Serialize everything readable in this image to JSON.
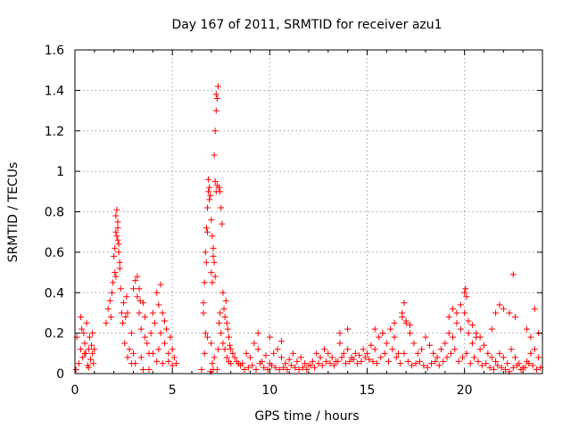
{
  "chart_data": {
    "type": "scatter",
    "title": "Day 167 of 2011, SRMTID for receiver azu1",
    "xlabel": "GPS time / hours",
    "ylabel": "SRMTID / TECUs",
    "xlim": [
      0,
      24
    ],
    "ylim": [
      0,
      1.6
    ],
    "xticks": [
      0,
      5,
      10,
      15,
      20
    ],
    "xtick_labels": [
      "0",
      "5",
      "10",
      "15",
      "20"
    ],
    "yticks": [
      0,
      0.2,
      0.4,
      0.6,
      0.8,
      1,
      1.2,
      1.4,
      1.6
    ],
    "ytick_labels": [
      "0",
      "0.2",
      "0.4",
      "0.6",
      "0.8",
      "1",
      "1.2",
      "1.4",
      "1.6"
    ],
    "grid": true,
    "marker": "plus",
    "color": "#ff0000",
    "series": [
      {
        "name": "SRMTID",
        "x": [
          0.05,
          0.1,
          0.2,
          0.3,
          0.35,
          0.4,
          0.45,
          0.5,
          0.55,
          0.6,
          0.65,
          0.7,
          0.75,
          0.8,
          0.85,
          0.9,
          0.95,
          1.0,
          0.3,
          0.5,
          0.7,
          0.9,
          1.6,
          1.7,
          1.8,
          1.85,
          1.9,
          1.95,
          2.0,
          2.05,
          2.1,
          2.15,
          2.2,
          2.25,
          2.3,
          2.35,
          2.4,
          2.45,
          2.5,
          2.55,
          2.6,
          2.65,
          2.7,
          2.8,
          2.9,
          3.0,
          3.1,
          3.2,
          3.3,
          3.4,
          3.5,
          3.6,
          3.7,
          3.8,
          3.9,
          4.0,
          4.1,
          4.2,
          4.3,
          4.4,
          4.5,
          4.6,
          4.7,
          4.8,
          4.9,
          5.0,
          5.1,
          5.2,
          2.1,
          2.15,
          2.2,
          2.2,
          2.25,
          2.3,
          2.1,
          2.05,
          3.0,
          3.1,
          3.2,
          3.3,
          3.35,
          3.4,
          3.5,
          4.2,
          4.3,
          4.4,
          4.5,
          4.6,
          2.7,
          2.9,
          3.6,
          3.8,
          4.0,
          4.8,
          5.0,
          6.5,
          6.6,
          6.65,
          6.7,
          6.75,
          6.8,
          6.85,
          6.9,
          6.95,
          7.0,
          7.05,
          7.1,
          7.15,
          7.2,
          7.25,
          7.3,
          7.35,
          7.4,
          7.45,
          7.5,
          7.55,
          7.6,
          7.65,
          7.7,
          7.75,
          7.8,
          7.85,
          7.9,
          7.95,
          8.0,
          8.1,
          8.2,
          8.3,
          8.4,
          8.5,
          6.7,
          6.75,
          6.8,
          6.85,
          6.9,
          7.0,
          7.05,
          7.1,
          7.15,
          7.2,
          7.2,
          7.25,
          7.25,
          7.3,
          7.1,
          7.15,
          6.95,
          7.0,
          7.05,
          7.3,
          7.35,
          7.4,
          7.45,
          6.6,
          6.65,
          6.8,
          7.5,
          7.6,
          7.7,
          7.8,
          7.9,
          8.0,
          8.6,
          8.8,
          9.0,
          9.2,
          9.4,
          9.6,
          9.8,
          10.0,
          10.2,
          10.4,
          10.6,
          10.8,
          11.0,
          11.2,
          11.4,
          11.6,
          11.8,
          12.0,
          12.2,
          12.4,
          12.6,
          12.8,
          13.0,
          13.2,
          13.4,
          13.6,
          13.8,
          14.0,
          14.2,
          14.4,
          14.6,
          14.8,
          15.0,
          15.2,
          15.4,
          15.6,
          15.8,
          16.0,
          16.2,
          16.4,
          16.6,
          16.8,
          17.0,
          17.2,
          17.4,
          17.6,
          17.8,
          18.0,
          18.2,
          18.4,
          18.6,
          18.8,
          19.0,
          19.2,
          19.4,
          19.6,
          19.8,
          20.0,
          20.2,
          20.4,
          20.6,
          20.8,
          21.0,
          21.2,
          21.4,
          21.6,
          21.8,
          22.0,
          22.2,
          22.4,
          22.6,
          22.8,
          23.0,
          23.2,
          23.4,
          23.6,
          23.8,
          8.7,
          8.9,
          9.1,
          9.3,
          9.5,
          9.7,
          9.9,
          10.1,
          10.3,
          10.5,
          10.7,
          10.9,
          11.1,
          11.3,
          11.5,
          11.7,
          11.9,
          12.1,
          12.3,
          12.5,
          12.7,
          12.9,
          13.1,
          13.3,
          13.5,
          13.7,
          13.9,
          14.1,
          14.3,
          14.5,
          14.7,
          14.9,
          15.1,
          15.3,
          15.5,
          15.7,
          15.9,
          16.1,
          16.3,
          16.5,
          16.7,
          16.9,
          17.1,
          17.3,
          17.5,
          17.7,
          17.9,
          18.1,
          18.3,
          18.5,
          18.7,
          18.9,
          19.1,
          19.3,
          19.5,
          19.7,
          19.9,
          20.1,
          20.3,
          20.5,
          20.7,
          20.9,
          21.1,
          21.3,
          21.5,
          21.7,
          21.9,
          22.1,
          22.3,
          22.5,
          22.7,
          22.9,
          23.1,
          23.3,
          23.5,
          23.7,
          23.9,
          9.4,
          10.0,
          10.6,
          13.6,
          14.0,
          15.4,
          15.8,
          16.4,
          16.8,
          16.9,
          17.0,
          17.2,
          19.2,
          19.4,
          19.6,
          19.8,
          20.0,
          20.05,
          20.1,
          20.2,
          20.4,
          20.6,
          20.8,
          21.4,
          21.6,
          21.8,
          22.0,
          22.3,
          22.5,
          22.6,
          23.2,
          23.4,
          23.6,
          23.8
        ],
        "y": [
          0.02,
          0.18,
          0.05,
          0.12,
          0.22,
          0.08,
          0.2,
          0.15,
          0.1,
          0.25,
          0.04,
          0.12,
          0.18,
          0.07,
          0.14,
          0.1,
          0.05,
          0.12,
          0.28,
          0.1,
          0.03,
          0.2,
          0.25,
          0.32,
          0.36,
          0.28,
          0.4,
          0.45,
          0.58,
          0.62,
          0.7,
          0.68,
          0.75,
          0.6,
          0.55,
          0.42,
          0.3,
          0.25,
          0.35,
          0.15,
          0.28,
          0.38,
          0.3,
          0.12,
          0.2,
          0.42,
          0.46,
          0.38,
          0.3,
          0.22,
          0.35,
          0.28,
          0.15,
          0.1,
          0.2,
          0.3,
          0.25,
          0.4,
          0.34,
          0.2,
          0.3,
          0.15,
          0.22,
          0.1,
          0.18,
          0.12,
          0.08,
          0.05,
          0.78,
          0.81,
          0.72,
          0.66,
          0.64,
          0.52,
          0.48,
          0.5,
          0.1,
          0.05,
          0.48,
          0.42,
          0.36,
          0.08,
          0.02,
          0.06,
          0.12,
          0.44,
          0.05,
          0.26,
          0.08,
          0.05,
          0.18,
          0.02,
          0.1,
          0.06,
          0.04,
          0.02,
          0.3,
          0.45,
          0.6,
          0.72,
          0.82,
          0.96,
          0.92,
          0.88,
          0.76,
          0.68,
          0.58,
          1.08,
          1.2,
          1.3,
          1.36,
          1.42,
          0.92,
          0.9,
          0.82,
          0.74,
          0.4,
          0.32,
          0.28,
          0.36,
          0.25,
          0.22,
          0.18,
          0.14,
          0.12,
          0.1,
          0.08,
          0.06,
          0.05,
          0.04,
          0.2,
          0.55,
          0.7,
          0.9,
          0.86,
          0.5,
          0.45,
          0.62,
          0.55,
          0.48,
          0.95,
          1.38,
          0.9,
          0.93,
          0.02,
          0.08,
          0.01,
          0.15,
          0.05,
          0.02,
          0.12,
          0.25,
          0.3,
          0.35,
          0.1,
          0.18,
          0.2,
          0.15,
          0.12,
          0.08,
          0.06,
          0.05,
          0.05,
          0.1,
          0.08,
          0.15,
          0.12,
          0.06,
          0.09,
          0.05,
          0.1,
          0.12,
          0.08,
          0.05,
          0.07,
          0.1,
          0.06,
          0.08,
          0.05,
          0.04,
          0.06,
          0.1,
          0.08,
          0.12,
          0.1,
          0.08,
          0.06,
          0.15,
          0.1,
          0.12,
          0.08,
          0.1,
          0.09,
          0.12,
          0.1,
          0.14,
          0.12,
          0.18,
          0.2,
          0.15,
          0.22,
          0.18,
          0.1,
          0.28,
          0.25,
          0.2,
          0.15,
          0.1,
          0.12,
          0.18,
          0.14,
          0.1,
          0.08,
          0.12,
          0.15,
          0.2,
          0.18,
          0.25,
          0.22,
          0.3,
          0.2,
          0.15,
          0.18,
          0.12,
          0.14,
          0.1,
          0.08,
          0.06,
          0.1,
          0.08,
          0.05,
          0.12,
          0.08,
          0.05,
          0.03,
          0.06,
          0.1,
          0.12,
          0.08,
          0.02,
          0.03,
          0.04,
          0.02,
          0.05,
          0.03,
          0.02,
          0.04,
          0.03,
          0.02,
          0.03,
          0.02,
          0.04,
          0.03,
          0.02,
          0.03,
          0.02,
          0.04,
          0.03,
          0.05,
          0.04,
          0.06,
          0.05,
          0.04,
          0.06,
          0.08,
          0.05,
          0.06,
          0.07,
          0.05,
          0.06,
          0.08,
          0.07,
          0.06,
          0.05,
          0.08,
          0.1,
          0.06,
          0.12,
          0.08,
          0.05,
          0.1,
          0.06,
          0.04,
          0.05,
          0.06,
          0.04,
          0.03,
          0.05,
          0.06,
          0.04,
          0.06,
          0.08,
          0.1,
          0.12,
          0.06,
          0.08,
          0.1,
          0.05,
          0.08,
          0.06,
          0.04,
          0.05,
          0.03,
          0.02,
          0.04,
          0.03,
          0.02,
          0.01,
          0.03,
          0.04,
          0.02,
          0.03,
          0.05,
          0.04,
          0.02,
          0.03,
          0.2,
          0.18,
          0.16,
          0.2,
          0.22,
          0.22,
          0.2,
          0.25,
          0.3,
          0.35,
          0.26,
          0.24,
          0.28,
          0.32,
          0.3,
          0.34,
          0.4,
          0.42,
          0.38,
          0.26,
          0.24,
          0.2,
          0.18,
          0.22,
          0.3,
          0.34,
          0.32,
          0.3,
          0.49,
          0.28,
          0.22,
          0.18,
          0.32,
          0.2
        ]
      }
    ]
  }
}
